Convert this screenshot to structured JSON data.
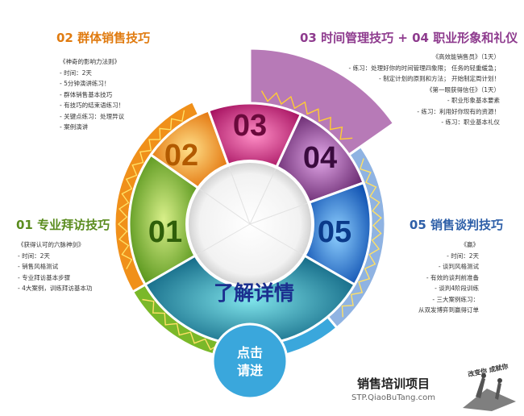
{
  "sections": {
    "s01": {
      "title": "01 专业拜访技巧",
      "items": [
        "《获得认可的六脉神剑》",
        "- 时间：2天",
        "- 销售风格测试",
        "- 专业拜访基本步骤",
        "- 4大案例，训练拜访基本功"
      ]
    },
    "s02": {
      "title": "02 群体销售技巧",
      "items": [
        "《神奇的影响力法则》",
        "- 时间：2天",
        "- 5分钟演讲练习！",
        "- 群体销售基本技巧",
        "- 有技巧的结束语练习！",
        "- 关键点练习：处理异议",
        "- 案例演讲"
      ]
    },
    "s03": {
      "title": "03 时间管理技巧  +  04 职业形象和礼仪",
      "items": [
        "《高效能销售员》（1天）",
        "- 练习：处理好你的时间管理四象限；  任务的轻重缓急；",
        "- 制定计划的原则和方法；   开始制定周计划！",
        "《第一眼获得信任》（1天）",
        "- 职业形象基本要素",
        "- 练习：利用好你现有的资源！",
        "- 练习：职业基本礼仪"
      ]
    },
    "s05": {
      "title": "05 销售谈判技巧",
      "items": [
        "《赢》",
        "- 时间：2天",
        "- 谈判风格测试",
        "- 有效的谈判前准备",
        "- 谈判4阶段训练",
        "- 三大案例练习：",
        "从双发博弈到赢得订单"
      ]
    }
  },
  "wheel": {
    "numbers": [
      "01",
      "02",
      "03",
      "04",
      "05"
    ],
    "center_label": "了解详情",
    "click_label": [
      "点击",
      "请进"
    ]
  },
  "footer": {
    "title": "销售培训项目",
    "url": "STP.QiaoBuTang.com",
    "logo_text": "改变你 成就你"
  },
  "colors": {
    "green": "#7ab829",
    "orange": "#f0901a",
    "magenta": "#c2197a",
    "purple": "#7a2a80",
    "blue": "#1f6fd1",
    "teal": "#13899a",
    "sky": "#3aa7dc",
    "lavender": "#b77ab7",
    "lightblue": "#8fb3e2"
  }
}
